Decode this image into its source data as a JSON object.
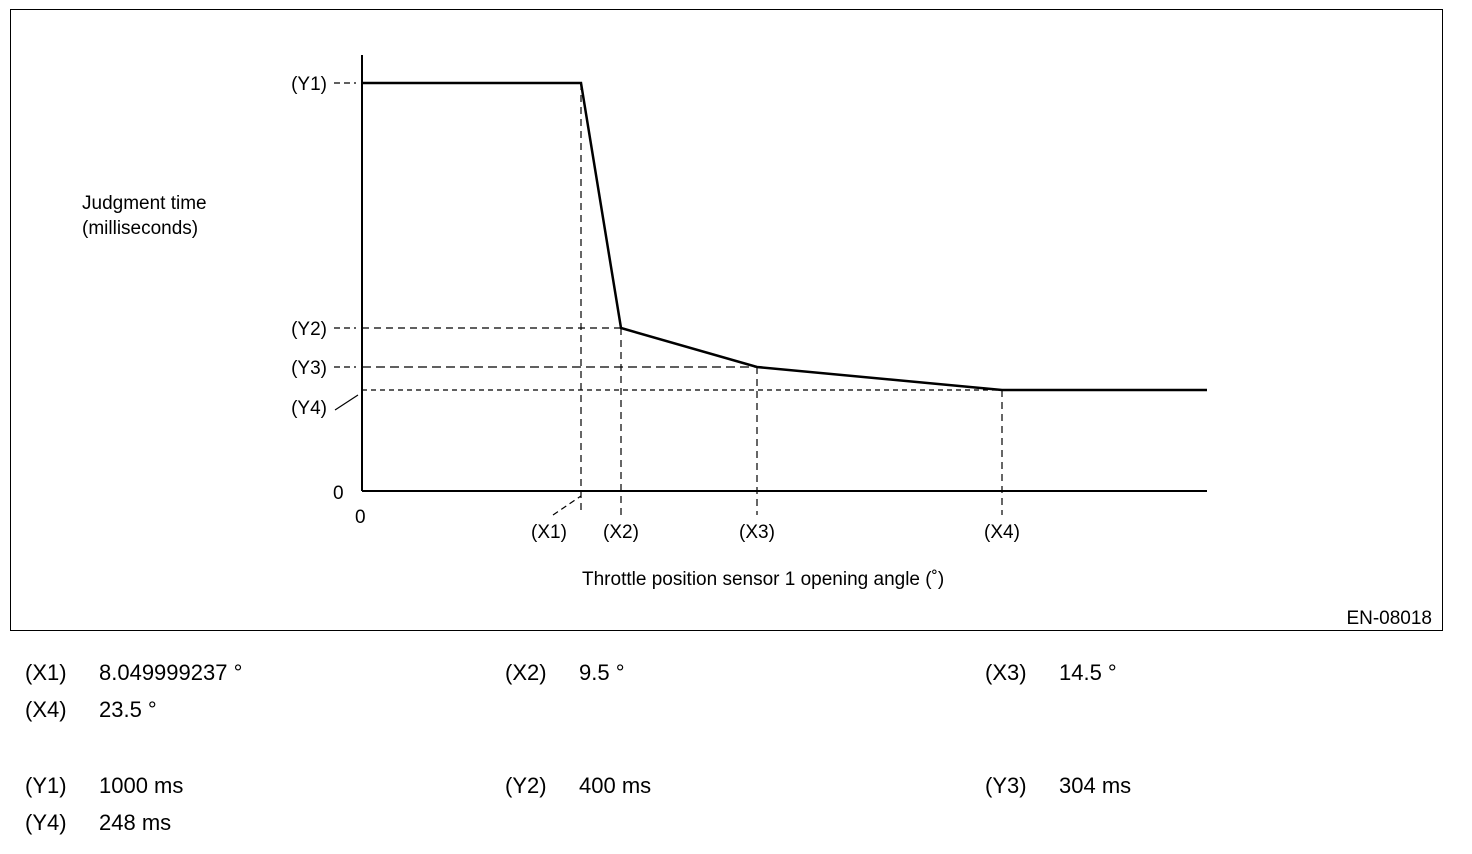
{
  "chart_data": {
    "type": "line",
    "ylabel_line1": "Judgment time",
    "ylabel_line2": "(milliseconds)",
    "xlabel": "Throttle position sensor 1 opening angle (˚)",
    "figure_id": "EN-08018",
    "x_origin_label": "0",
    "y_origin_label": "0",
    "x_marks": [
      {
        "label": "(X1)",
        "value": 8.049999237
      },
      {
        "label": "(X2)",
        "value": 9.5
      },
      {
        "label": "(X3)",
        "value": 14.5
      },
      {
        "label": "(X4)",
        "value": 23.5
      }
    ],
    "y_marks": [
      {
        "label": "(Y1)",
        "value": 1000
      },
      {
        "label": "(Y2)",
        "value": 400
      },
      {
        "label": "(Y3)",
        "value": 304
      },
      {
        "label": "(Y4)",
        "value": 248
      }
    ],
    "series": [
      {
        "points": [
          [
            0,
            1000
          ],
          [
            8.049999237,
            1000
          ],
          [
            9.5,
            400
          ],
          [
            14.5,
            304
          ],
          [
            23.5,
            248
          ],
          [
            31,
            248
          ]
        ]
      }
    ],
    "xlim": [
      0,
      31
    ],
    "ylim": [
      0,
      1000
    ],
    "grid": false
  },
  "legend": {
    "rows": [
      [
        {
          "key": "(X1)",
          "value": "8.049999237 °"
        },
        {
          "key": "(X2)",
          "value": "9.5 °"
        },
        {
          "key": "(X3)",
          "value": "14.5 °"
        }
      ],
      [
        {
          "key": "(X4)",
          "value": "23.5 °"
        }
      ],
      [
        {
          "key": "(Y1)",
          "value": "1000 ms"
        },
        {
          "key": "(Y2)",
          "value": "400 ms"
        },
        {
          "key": "(Y3)",
          "value": "304 ms"
        }
      ],
      [
        {
          "key": "(Y4)",
          "value": "248 ms"
        }
      ]
    ]
  }
}
